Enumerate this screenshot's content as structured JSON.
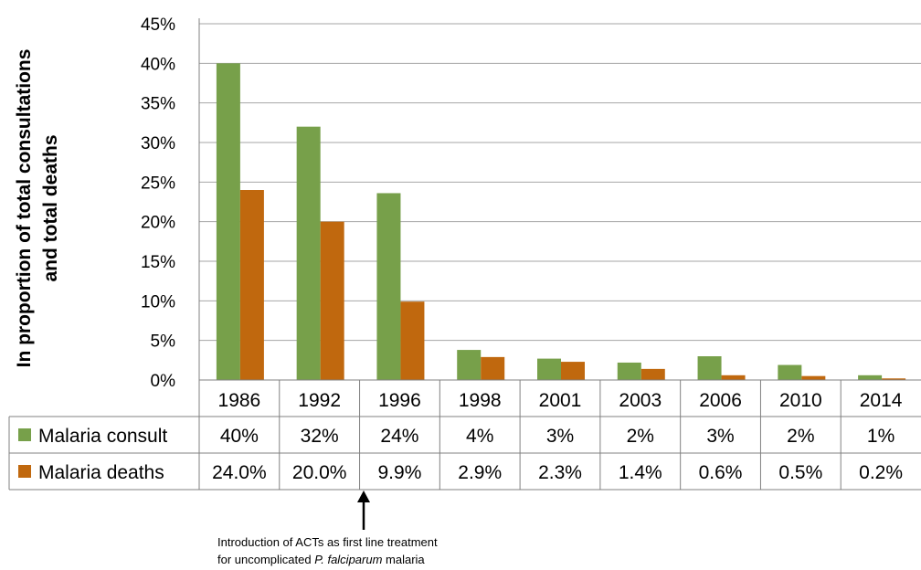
{
  "chart_data": {
    "type": "bar",
    "title": "",
    "xlabel": "",
    "ylabel_line1": "In proportion of total consultations",
    "ylabel_line2": "and total deaths",
    "ylim": [
      0,
      45
    ],
    "y_ticks": [
      "0%",
      "5%",
      "10%",
      "15%",
      "20%",
      "25%",
      "30%",
      "35%",
      "40%",
      "45%"
    ],
    "categories": [
      "1986",
      "1992",
      "1996",
      "1998",
      "2001",
      "2003",
      "2006",
      "2010",
      "2014"
    ],
    "series": [
      {
        "name": "Malaria consult",
        "color": "#77a04a",
        "values": [
          40,
          32,
          23.6,
          3.8,
          2.7,
          2.2,
          3.0,
          1.9,
          0.6
        ],
        "table_labels": [
          "40%",
          "32%",
          "24%",
          "4%",
          "3%",
          "2%",
          "3%",
          "2%",
          "1%"
        ]
      },
      {
        "name": "Malaria deaths",
        "color": "#c0680e",
        "values": [
          24.0,
          20.0,
          9.9,
          2.9,
          2.3,
          1.4,
          0.6,
          0.5,
          0.2
        ],
        "table_labels": [
          "24.0%",
          "20.0%",
          "9.9%",
          "2.9%",
          "2.3%",
          "1.4%",
          "0.6%",
          "0.5%",
          "0.2%"
        ]
      }
    ],
    "grid": true,
    "legend_placement": "data-table-left",
    "annotation": {
      "line1": "Introduction  of ACTs as first line treatment",
      "line2_prefix": "for uncomplicated ",
      "line2_italic": "P. falciparum",
      "line2_suffix": " malaria",
      "category": "1996"
    }
  }
}
